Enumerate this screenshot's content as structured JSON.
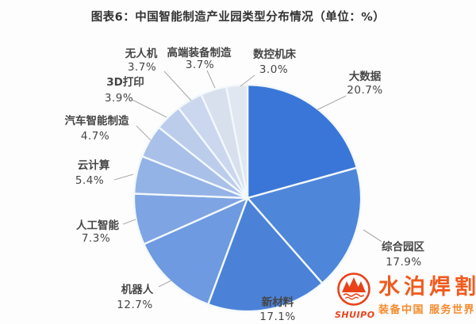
{
  "title": "图表6：中国智能制造产业园类型分布情况（单位：%）",
  "chart_data": {
    "type": "pie",
    "title": "图表6：中国智能制造产业园类型分布情况（单位：%）",
    "unit": "%",
    "start_angle_deg": 0,
    "direction": "clockwise",
    "legend_position": "none-direct-labels-with-leader-lines",
    "labels": [
      "大数据",
      "综合园区",
      "新材料",
      "机器人",
      "人工智能",
      "云计算",
      "汽车智能制造",
      "3D打印",
      "无人机",
      "高端装备制造",
      "数控机床"
    ],
    "values": [
      20.7,
      17.9,
      17.1,
      12.7,
      7.3,
      5.4,
      4.7,
      3.9,
      3.7,
      3.7,
      3.0
    ],
    "value_labels": [
      "20.7%",
      "17.9%",
      "17.1%",
      "12.7%",
      "7.3%",
      "5.4%",
      "4.7%",
      "3.9%",
      "3.7%",
      "3.7%",
      "3.0%"
    ],
    "colors": [
      "#3a76d7",
      "#4e86da",
      "#4b82d8",
      "#6d9ae0",
      "#7ea4e3",
      "#93b2e6",
      "#a9c0e9",
      "#bccdec",
      "#cbd7ee",
      "#d8e0ee",
      "#e1e7f0"
    ],
    "slice_gap_color": "#f2f8fb",
    "leader_line_color": "#ababab"
  },
  "watermark": {
    "brand": "水泊焊割",
    "brand_latin": "SHUIPO",
    "slogan": "装备中国 服务世界",
    "logo_color": "#e8380d",
    "brand_color": "#f05313",
    "slogan_color": "#f6831f"
  }
}
